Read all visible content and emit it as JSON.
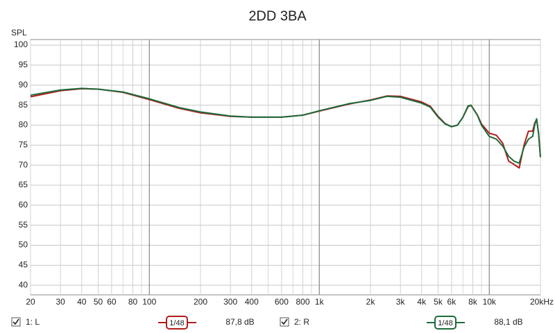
{
  "chart_data": {
    "type": "line",
    "title": "2DD 3BA",
    "y_label": "SPL",
    "log_x": true,
    "grid": true,
    "xlim": [
      20,
      20000
    ],
    "ylim": [
      37.6,
      101.4
    ],
    "xticks": [
      20,
      30,
      40,
      50,
      60,
      80,
      100,
      200,
      300,
      400,
      600,
      800,
      {
        "value": 1000,
        "label": "1k"
      },
      {
        "value": 2000,
        "label": "2k"
      },
      {
        "value": 3000,
        "label": "3k"
      },
      {
        "value": 4000,
        "label": "4k"
      },
      {
        "value": 5000,
        "label": "5k"
      },
      {
        "value": 6000,
        "label": "6k"
      },
      {
        "value": 8000,
        "label": "8k"
      },
      {
        "value": 10000,
        "label": "10k"
      },
      {
        "value": 20000,
        "label": "20kHz"
      }
    ],
    "x_major_grid": [
      100,
      1000,
      10000
    ],
    "x_minor_grid": [
      70,
      90,
      500,
      700,
      900,
      7000,
      9000
    ],
    "yticks": [
      40,
      45,
      50,
      55,
      60,
      65,
      70,
      75,
      80,
      85,
      90,
      95,
      100
    ],
    "x": [
      20,
      30,
      40,
      50,
      70,
      100,
      150,
      200,
      300,
      400,
      600,
      800,
      1000,
      1500,
      2000,
      2500,
      3000,
      4000,
      4500,
      5000,
      5500,
      6000,
      6500,
      7000,
      7500,
      7800,
      8500,
      9000,
      10000,
      11000,
      12000,
      13000,
      14000,
      15000,
      16000,
      17000,
      18000,
      18500,
      19000,
      19500,
      20000
    ],
    "series": [
      {
        "name": "1: L",
        "color": "#b01c1c",
        "smoothing": "1/48",
        "level_label": "87,8 dB",
        "values": [
          87.1,
          88.6,
          89.1,
          89,
          88.2,
          86.4,
          84.2,
          83.1,
          82.2,
          82,
          82,
          82.5,
          83.5,
          85.3,
          86.3,
          87.3,
          87.2,
          85.8,
          84.7,
          82.2,
          80.4,
          79.6,
          80,
          82,
          84.6,
          85,
          82.6,
          80.3,
          78,
          77.5,
          75.5,
          71,
          70.2,
          69.3,
          75,
          78.5,
          78.5,
          80.5,
          81.5,
          78,
          72
        ]
      },
      {
        "name": "2: R",
        "color": "#1e6b3c",
        "smoothing": "1/48",
        "level_label": "88,1 dB",
        "values": [
          87.5,
          88.8,
          89.2,
          89,
          88.3,
          86.6,
          84.4,
          83.3,
          82.3,
          82,
          82,
          82.5,
          83.6,
          85.4,
          86.2,
          87.2,
          87,
          85.5,
          84.5,
          82,
          80.3,
          79.6,
          80,
          82,
          84.8,
          85,
          82.5,
          80,
          77.2,
          76.5,
          74.8,
          72.2,
          71,
          70.5,
          74.5,
          76.5,
          77.2,
          80,
          81.6,
          78,
          72
        ]
      }
    ]
  }
}
